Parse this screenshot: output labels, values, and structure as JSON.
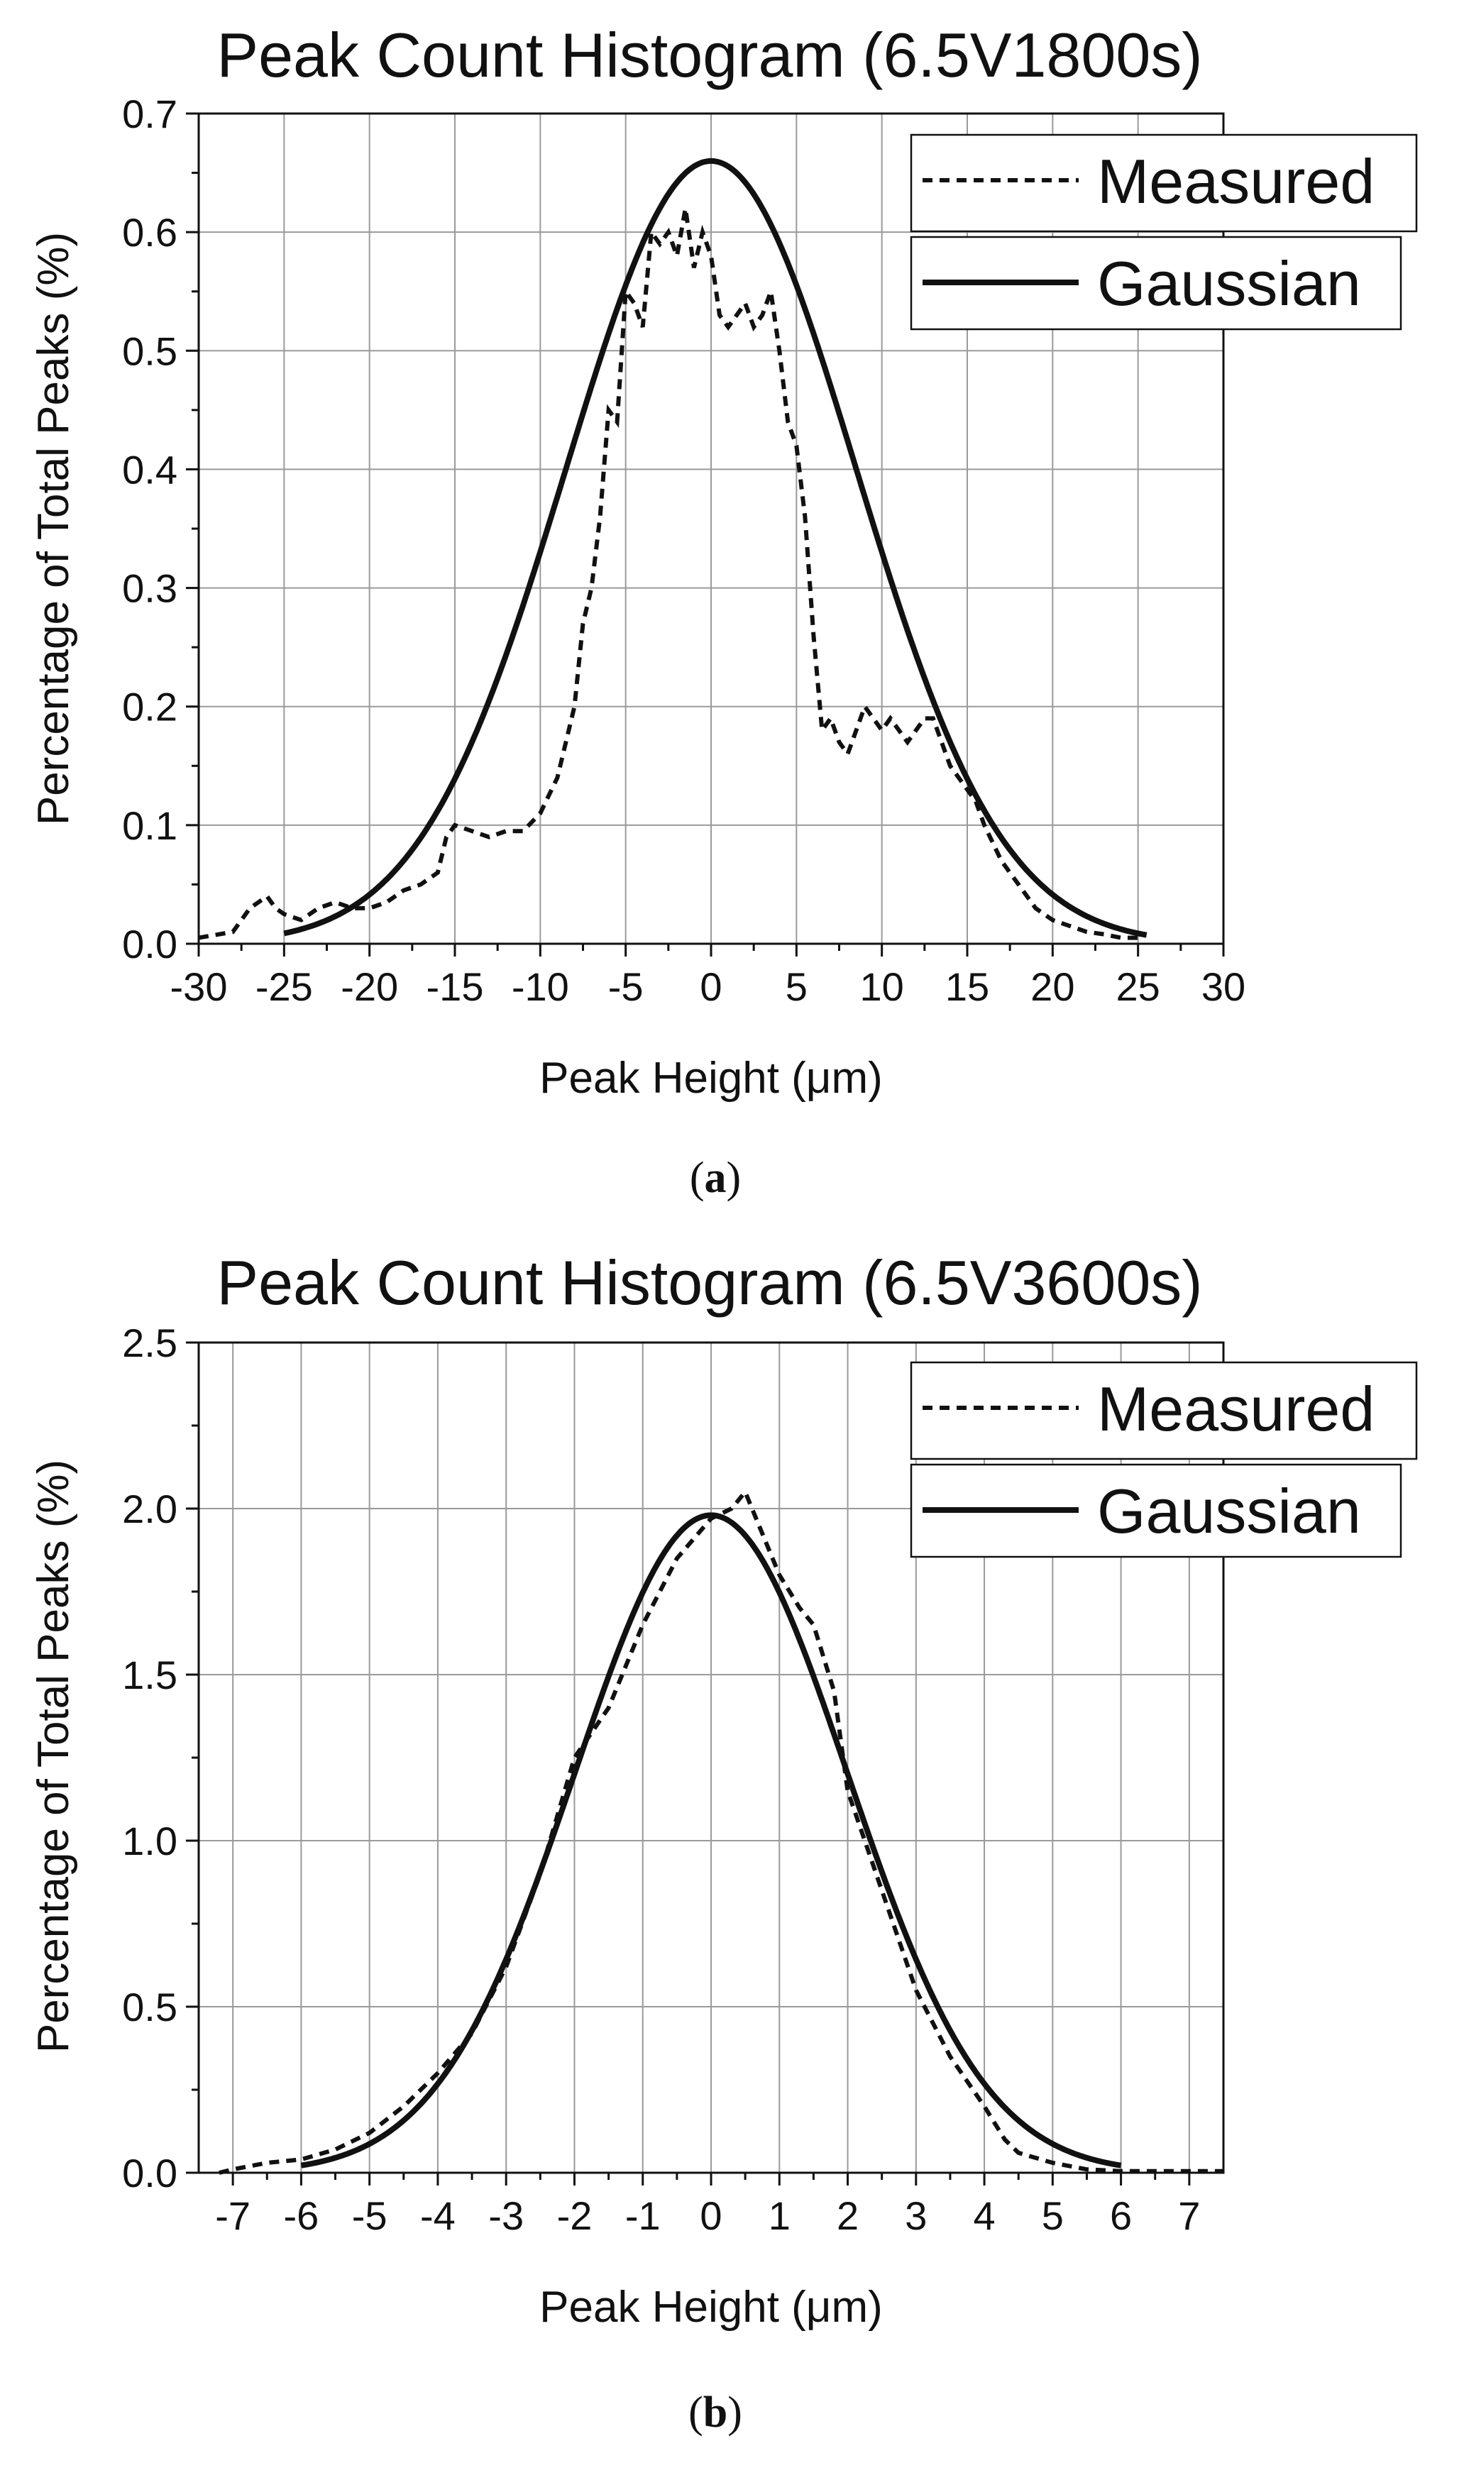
{
  "chart_data": [
    {
      "id": "a",
      "type": "line",
      "title": "Peak Count Histogram (6.5V1800s)",
      "xlabel": "Peak Height (μm)",
      "ylabel": "Percentage of Total Peaks (%)",
      "caption_letter": "a",
      "xlim": [
        -30,
        30
      ],
      "ylim": [
        0,
        0.7
      ],
      "xticks": [
        -30,
        -25,
        -20,
        -15,
        -10,
        -5,
        0,
        5,
        10,
        15,
        20,
        25,
        30
      ],
      "xtick_labels": [
        "-30",
        "-25",
        "-20",
        "-15",
        "-10",
        "-5",
        "0",
        "5",
        "10",
        "15",
        "20",
        "25",
        "30"
      ],
      "yticks": [
        0,
        0.1,
        0.2,
        0.3,
        0.4,
        0.5,
        0.6,
        0.7
      ],
      "ytick_labels": [
        "0.0",
        "0.1",
        "0.2",
        "0.3",
        "0.4",
        "0.5",
        "0.6",
        "0.7"
      ],
      "grid": true,
      "legend_position": "top-right",
      "series": [
        {
          "name": "Measured",
          "style": "dashed",
          "x": [
            -30,
            -28,
            -27,
            -26,
            -25.5,
            -25,
            -24,
            -23,
            -22,
            -21,
            -20,
            -19,
            -18,
            -17,
            -16,
            -15.5,
            -15,
            -14,
            -13,
            -12,
            -11,
            -10,
            -9,
            -8,
            -7.5,
            -7,
            -6.5,
            -6,
            -5.5,
            -5,
            -4.5,
            -4,
            -3.5,
            -3,
            -2.5,
            -2,
            -1.5,
            -1,
            -0.5,
            0,
            0.5,
            1,
            1.5,
            2,
            2.5,
            3,
            3.5,
            4,
            4.5,
            5,
            5.5,
            6,
            6.5,
            7,
            7.5,
            8,
            8.5,
            9,
            9.5,
            10,
            10.5,
            11,
            11.5,
            12,
            12.5,
            13,
            13.5,
            14,
            14.5,
            15,
            15.5,
            16,
            17,
            18,
            19,
            20,
            21,
            22,
            23,
            24,
            25
          ],
          "y": [
            0.005,
            0.01,
            0.03,
            0.04,
            0.03,
            0.025,
            0.02,
            0.03,
            0.035,
            0.03,
            0.03,
            0.035,
            0.045,
            0.05,
            0.06,
            0.09,
            0.1,
            0.095,
            0.09,
            0.095,
            0.095,
            0.11,
            0.14,
            0.2,
            0.27,
            0.3,
            0.36,
            0.45,
            0.44,
            0.55,
            0.54,
            0.52,
            0.6,
            0.59,
            0.6,
            0.58,
            0.62,
            0.57,
            0.6,
            0.58,
            0.53,
            0.52,
            0.53,
            0.54,
            0.52,
            0.53,
            0.55,
            0.5,
            0.44,
            0.42,
            0.36,
            0.26,
            0.18,
            0.19,
            0.17,
            0.16,
            0.18,
            0.2,
            0.19,
            0.18,
            0.19,
            0.18,
            0.17,
            0.18,
            0.19,
            0.19,
            0.17,
            0.15,
            0.14,
            0.13,
            0.12,
            0.1,
            0.07,
            0.05,
            0.03,
            0.02,
            0.015,
            0.01,
            0.008,
            0.005,
            0.005
          ]
        },
        {
          "name": "Gaussian",
          "style": "solid",
          "gaussian": {
            "amplitude": 0.66,
            "mean": 0,
            "sigma": 8.5,
            "xmin": -25,
            "xmax": 25.5
          }
        }
      ]
    },
    {
      "id": "b",
      "type": "line",
      "title": "Peak Count Histogram (6.5V3600s)",
      "xlabel": "Peak Height (μm)",
      "ylabel": "Percentage of Total Peaks (%)",
      "caption_letter": "b",
      "xlim": [
        -7.5,
        7.5
      ],
      "ylim": [
        0,
        2.5
      ],
      "xticks": [
        -7,
        -6,
        -5,
        -4,
        -3,
        -2,
        -1,
        0,
        1,
        2,
        3,
        4,
        5,
        6,
        7
      ],
      "xtick_labels": [
        "-7",
        "-6",
        "-5",
        "-4",
        "-3",
        "-2",
        "-1",
        "0",
        "1",
        "2",
        "3",
        "4",
        "5",
        "6",
        "7"
      ],
      "yticks": [
        0,
        0.5,
        1.0,
        1.5,
        2.0,
        2.5
      ],
      "ytick_labels": [
        "0.0",
        "0.5",
        "1.0",
        "1.5",
        "2.0",
        "2.5"
      ],
      "grid": true,
      "legend_position": "top-right",
      "series": [
        {
          "name": "Measured",
          "style": "dashed",
          "x": [
            -7.2,
            -7,
            -6.5,
            -6,
            -5.5,
            -5,
            -4.5,
            -4,
            -3.5,
            -3,
            -2.5,
            -2,
            -1.5,
            -1,
            -0.5,
            0,
            0.3,
            0.5,
            0.8,
            1,
            1.3,
            1.5,
            1.8,
            2,
            2.5,
            3,
            3.5,
            4,
            4.3,
            4.5,
            5,
            5.5,
            6,
            6.5,
            7,
            7.5
          ],
          "y": [
            0.0,
            0.01,
            0.03,
            0.04,
            0.07,
            0.12,
            0.2,
            0.3,
            0.42,
            0.62,
            0.9,
            1.25,
            1.4,
            1.65,
            1.85,
            1.97,
            2.0,
            2.05,
            1.9,
            1.8,
            1.7,
            1.65,
            1.45,
            1.15,
            0.85,
            0.55,
            0.35,
            0.2,
            0.1,
            0.06,
            0.03,
            0.01,
            0.005,
            0.005,
            0.005,
            0.005
          ]
        },
        {
          "name": "Gaussian",
          "style": "solid",
          "gaussian": {
            "amplitude": 1.98,
            "mean": 0,
            "sigma": 2.0,
            "xmin": -6.0,
            "xmax": 6.0
          }
        }
      ]
    }
  ]
}
